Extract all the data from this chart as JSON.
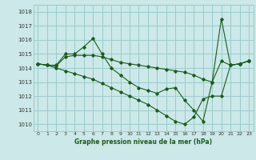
{
  "bg_color": "#cce8e8",
  "grid_color": "#99cccc",
  "line_color": "#1a5c1a",
  "title": "Graphe pression niveau de la mer (hPa)",
  "xlim": [
    -0.5,
    23.5
  ],
  "ylim": [
    1009.5,
    1018.5
  ],
  "yticks": [
    1010,
    1011,
    1012,
    1013,
    1014,
    1015,
    1016,
    1017,
    1018
  ],
  "xticks": [
    0,
    1,
    2,
    3,
    4,
    5,
    6,
    7,
    8,
    9,
    10,
    11,
    12,
    13,
    14,
    15,
    16,
    17,
    18,
    19,
    20,
    21,
    22,
    23
  ],
  "line1_x": [
    0,
    1,
    2,
    3,
    4,
    5,
    6,
    7,
    8,
    9,
    10,
    11,
    12,
    13,
    14,
    15,
    16,
    17,
    18,
    19,
    20,
    21,
    22,
    23
  ],
  "line1_y": [
    1014.3,
    1014.2,
    1014.2,
    1015.0,
    1015.0,
    1015.5,
    1016.1,
    1015.0,
    1014.0,
    1013.5,
    1013.0,
    1012.6,
    1012.4,
    1012.2,
    1012.5,
    1012.6,
    1011.7,
    1011.0,
    1010.2,
    1013.0,
    1017.5,
    1014.2,
    1014.3,
    1014.5
  ],
  "line2_x": [
    0,
    1,
    2,
    3,
    4,
    5,
    6,
    7,
    8,
    9,
    10,
    11,
    12,
    13,
    14,
    15,
    16,
    17,
    18,
    19,
    20,
    21,
    22,
    23
  ],
  "line2_y": [
    1014.3,
    1014.2,
    1014.15,
    1014.8,
    1014.9,
    1014.9,
    1014.9,
    1014.8,
    1014.6,
    1014.4,
    1014.3,
    1014.2,
    1014.1,
    1014.0,
    1013.9,
    1013.8,
    1013.7,
    1013.5,
    1013.2,
    1013.0,
    1014.5,
    1014.2,
    1014.3,
    1014.5
  ],
  "line3_x": [
    0,
    1,
    2,
    3,
    4,
    5,
    6,
    7,
    8,
    9,
    10,
    11,
    12,
    13,
    14,
    15,
    16,
    17,
    18,
    19,
    20,
    21,
    22,
    23
  ],
  "line3_y": [
    1014.3,
    1014.2,
    1014.0,
    1013.8,
    1013.6,
    1013.4,
    1013.2,
    1012.9,
    1012.6,
    1012.3,
    1012.0,
    1011.7,
    1011.4,
    1011.0,
    1010.6,
    1010.2,
    1010.0,
    1010.5,
    1011.8,
    1012.0,
    1012.0,
    1014.2,
    1014.3,
    1014.5
  ]
}
